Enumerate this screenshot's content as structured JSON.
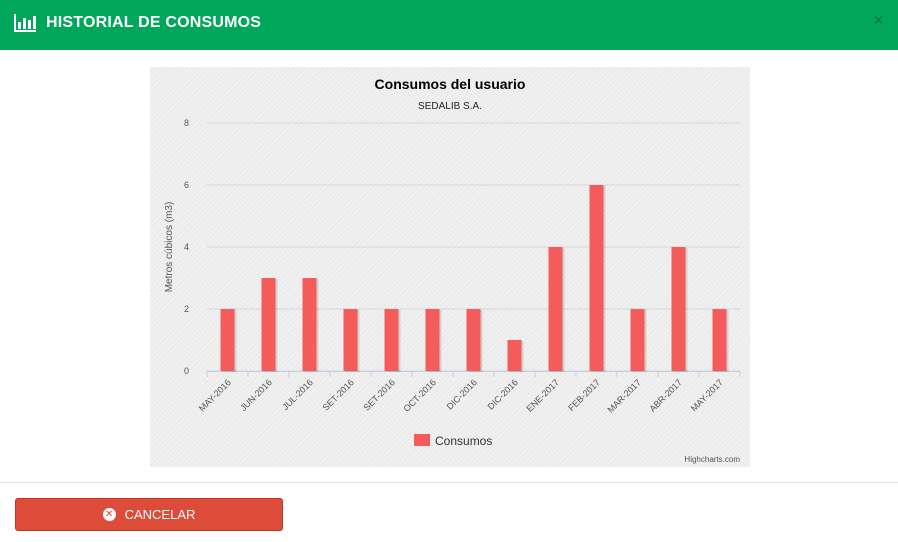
{
  "header": {
    "title": "HISTORIAL DE CONSUMOS",
    "icon": "bar-chart-icon",
    "close_label": "×",
    "color": "#00a65a"
  },
  "chart_data": {
    "type": "bar",
    "title": "Consumos del usuario",
    "subtitle": "SEDALIB S.A.",
    "ylabel": "Metros cúbicos (m3)",
    "xlabel": "",
    "ylim": [
      0,
      8
    ],
    "yticks": [
      0,
      2,
      4,
      6,
      8
    ],
    "grid": true,
    "legend_position": "bottom-center",
    "categories": [
      "MAY-2016",
      "JUN-2016",
      "JUL-2016",
      "SET-2016",
      "SET-2016",
      "OCT-2016",
      "DIC-2016",
      "DIC-2016",
      "ENE-2017",
      "FEB-2017",
      "MAR-2017",
      "ABR-2017",
      "MAY-2017"
    ],
    "series": [
      {
        "name": "Consumos",
        "color": "#f45b5b",
        "values": [
          2,
          3,
          3,
          2,
          2,
          2,
          2,
          1,
          4,
          6,
          2,
          4,
          2
        ]
      }
    ],
    "credits": "Highcharts.com"
  },
  "footer": {
    "cancel_label": "CANCELAR",
    "cancel_icon": "times-circle-icon",
    "cancel_color": "#dd4b39"
  }
}
